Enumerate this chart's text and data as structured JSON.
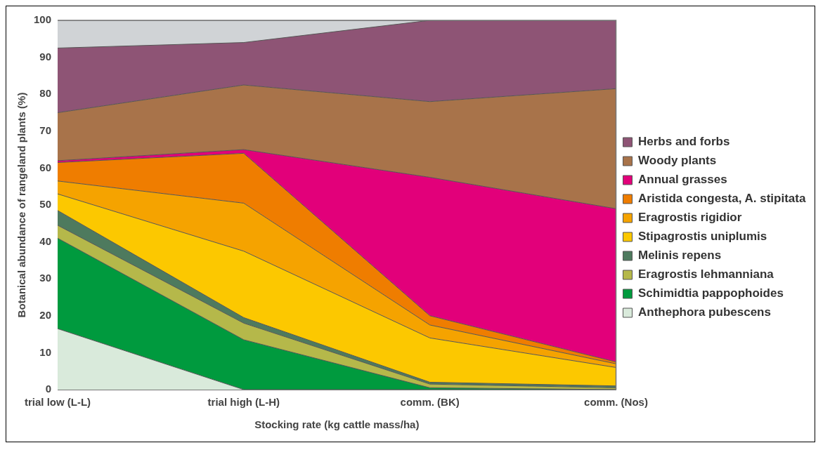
{
  "chart_data": {
    "type": "area",
    "stacked": true,
    "xlabel": "Stocking rate (kg cattle mass/ha)",
    "ylabel": "Botanical abundance of rangeland plants (%)",
    "categories": [
      "trial low (L-L)",
      "trial high (L-H)",
      "comm. (BK)",
      "comm. (Nos)"
    ],
    "ylim": [
      0,
      100
    ],
    "yticks": [
      0,
      10,
      20,
      30,
      40,
      50,
      60,
      70,
      80,
      90,
      100
    ],
    "grid": false,
    "legend": "right",
    "marker": "none",
    "series": [
      {
        "name": "Anthephora pubescens",
        "color": "#d9eadb",
        "values": [
          16.5,
          0,
          0,
          0
        ]
      },
      {
        "name": "Schimidtia pappophoides",
        "color": "#009a3e",
        "values": [
          24.5,
          13.5,
          0.5,
          0
        ]
      },
      {
        "name": "Eragrostis lehmanniana",
        "color": "#b5b84a",
        "values": [
          3.5,
          4.5,
          1,
          0.5
        ]
      },
      {
        "name": "Melinis repens",
        "color": "#4e7a5e",
        "values": [
          4,
          1.5,
          0.5,
          0.5
        ]
      },
      {
        "name": "Stipagrostis uniplumis",
        "color": "#fcc800",
        "values": [
          4.5,
          18,
          12,
          5
        ]
      },
      {
        "name": "Eragrostis rigidior",
        "color": "#f5a300",
        "values": [
          3.5,
          13,
          3.5,
          1
        ]
      },
      {
        "name": "Aristida congesta, A. stipitata",
        "color": "#ef7d00",
        "values": [
          5,
          13.5,
          2.5,
          0.5
        ]
      },
      {
        "name": "Annual grasses",
        "color": "#e2007a",
        "values": [
          0.5,
          1,
          37.5,
          41.5
        ]
      },
      {
        "name": "Woody plants",
        "color": "#a8734a",
        "values": [
          13,
          17.5,
          20.5,
          32.5
        ]
      },
      {
        "name": "Herbs and forbs",
        "color": "#8e5475",
        "values": [
          17.5,
          11.5,
          22,
          18.5
        ]
      },
      {
        "color": "#d0d3d6",
        "values": [
          7.5,
          6,
          0,
          0
        ]
      }
    ]
  }
}
